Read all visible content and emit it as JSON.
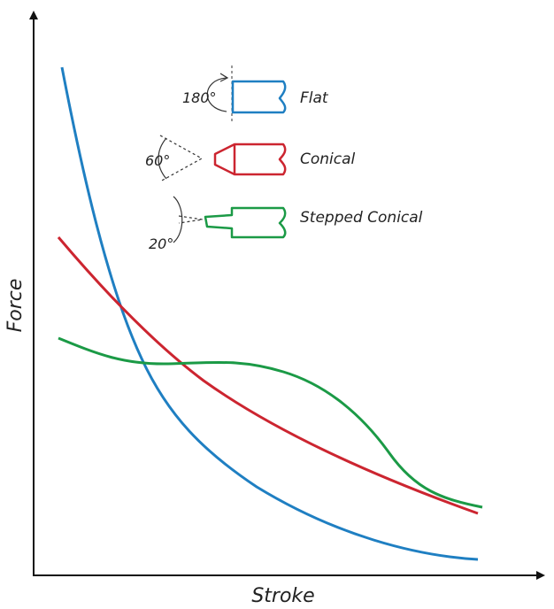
{
  "axes": {
    "x_label": "Stroke",
    "y_label": "Force",
    "color": "#111111"
  },
  "series": [
    {
      "key": "flat",
      "label": "Flat",
      "angle": "180°",
      "color": "#1f7fc2"
    },
    {
      "key": "conical",
      "label": "Conical",
      "angle": "60°",
      "color": "#cc2530"
    },
    {
      "key": "stepped",
      "label": "Stepped Conical",
      "angle": "20°",
      "color": "#1b9a46"
    }
  ]
}
